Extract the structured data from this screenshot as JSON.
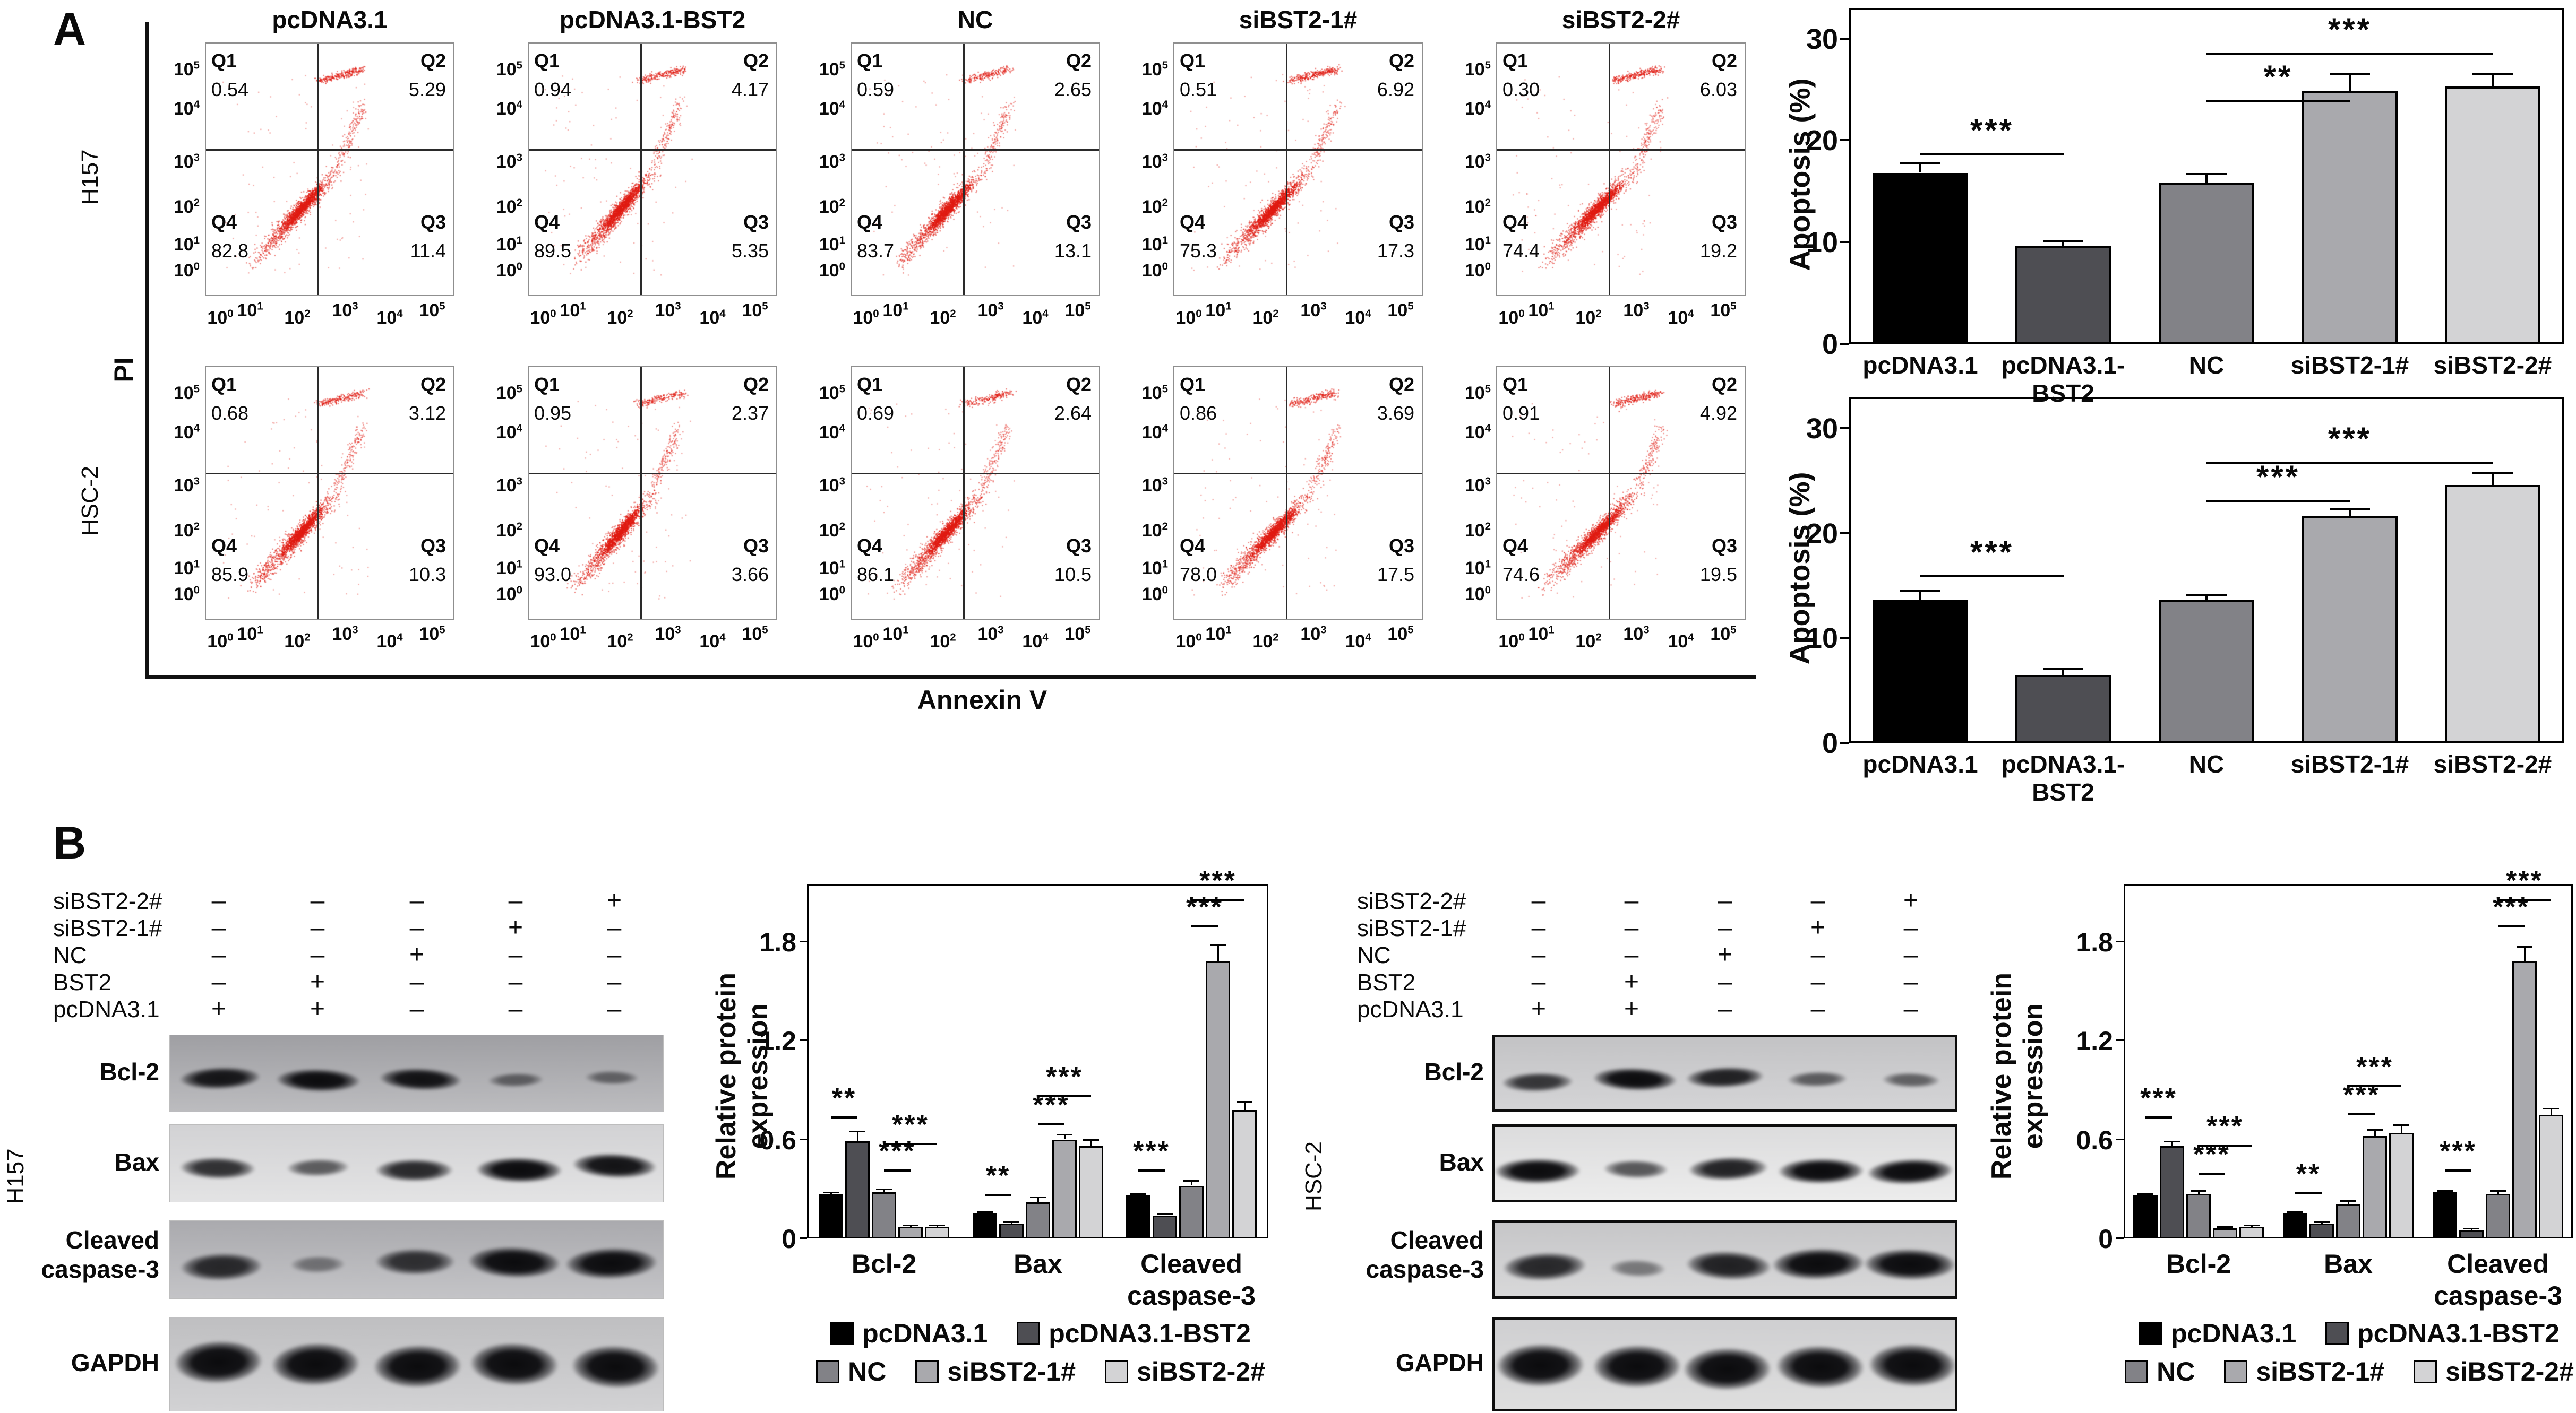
{
  "colors": {
    "scatter": "#e01b12",
    "bar_series": [
      "#000000",
      "#4e4e53",
      "#828287",
      "#a9a9ad",
      "#d3d3d5"
    ],
    "axis": "#000000"
  },
  "panel_a": {
    "label": "A",
    "col_headers": [
      "pcDNA3.1",
      "pcDNA3.1-BST2",
      "NC",
      "siBST2-1#",
      "siBST2-2#"
    ],
    "row_labels": [
      "H157",
      "HSC-2"
    ],
    "y_axis_label": "PI",
    "x_axis_label": "Annexin V",
    "log_base": "10",
    "y_exponents": [
      "5",
      "4",
      "3",
      "2",
      "1",
      "0"
    ],
    "x_exponents": [
      "0",
      "1",
      "2",
      "3",
      "4",
      "5"
    ],
    "quadrant_names": {
      "q1": "Q1",
      "q2": "Q2",
      "q3": "Q3",
      "q4": "Q4"
    },
    "plots": [
      {
        "cell_line": "H157",
        "condition": "pcDNA3.1",
        "q1": "0.54",
        "q2": "5.29",
        "q3": "11.4",
        "q4": "82.8"
      },
      {
        "cell_line": "H157",
        "condition": "pcDNA3.1-BST2",
        "q1": "0.94",
        "q2": "4.17",
        "q3": "5.35",
        "q4": "89.5"
      },
      {
        "cell_line": "H157",
        "condition": "NC",
        "q1": "0.59",
        "q2": "2.65",
        "q3": "13.1",
        "q4": "83.7"
      },
      {
        "cell_line": "H157",
        "condition": "siBST2-1#",
        "q1": "0.51",
        "q2": "6.92",
        "q3": "17.3",
        "q4": "75.3"
      },
      {
        "cell_line": "H157",
        "condition": "siBST2-2#",
        "q1": "0.30",
        "q2": "6.03",
        "q3": "19.2",
        "q4": "74.4"
      },
      {
        "cell_line": "HSC-2",
        "condition": "pcDNA3.1",
        "q1": "0.68",
        "q2": "3.12",
        "q3": "10.3",
        "q4": "85.9"
      },
      {
        "cell_line": "HSC-2",
        "condition": "pcDNA3.1-BST2",
        "q1": "0.95",
        "q2": "2.37",
        "q3": "3.66",
        "q4": "93.0"
      },
      {
        "cell_line": "HSC-2",
        "condition": "NC",
        "q1": "0.69",
        "q2": "2.64",
        "q3": "10.5",
        "q4": "86.1"
      },
      {
        "cell_line": "HSC-2",
        "condition": "siBST2-1#",
        "q1": "0.86",
        "q2": "3.69",
        "q3": "17.5",
        "q4": "78.0"
      },
      {
        "cell_line": "HSC-2",
        "condition": "siBST2-2#",
        "q1": "0.91",
        "q2": "4.92",
        "q3": "19.5",
        "q4": "74.6"
      }
    ]
  },
  "chart_data": [
    {
      "id": "apoptosis-h157",
      "type": "bar",
      "ylabel": "Apoptosis (%)",
      "categories": [
        "pcDNA3.1",
        "pcDNA3.1-\nBST2",
        "NC",
        "siBST2-1#",
        "siBST2-2#"
      ],
      "values": [
        16.8,
        9.6,
        15.8,
        24.8,
        25.3
      ],
      "errors": [
        0.9,
        0.5,
        0.9,
        1.7,
        1.2
      ],
      "ylim": [
        0,
        33
      ],
      "yticks": [
        0,
        10,
        20,
        30
      ],
      "significance": [
        {
          "from": 0,
          "to": 1,
          "label": "***",
          "y": 18.7
        },
        {
          "from": 2,
          "to": 3,
          "label": "**",
          "y": 24.0
        },
        {
          "from": 2,
          "to": 4,
          "label": "***",
          "y": 28.6
        }
      ]
    },
    {
      "id": "apoptosis-hsc2",
      "type": "bar",
      "ylabel": "Apoptosis (%)",
      "categories": [
        "pcDNA3.1",
        "pcDNA3.1-\nBST2",
        "NC",
        "siBST2-1#",
        "siBST2-2#"
      ],
      "values": [
        13.6,
        6.5,
        13.6,
        21.6,
        24.6
      ],
      "errors": [
        0.9,
        0.6,
        0.5,
        0.7,
        1.1
      ],
      "ylim": [
        0,
        33
      ],
      "yticks": [
        0,
        10,
        20,
        30
      ],
      "significance": [
        {
          "from": 0,
          "to": 1,
          "label": "***",
          "y": 16.0
        },
        {
          "from": 2,
          "to": 3,
          "label": "***",
          "y": 23.2
        },
        {
          "from": 2,
          "to": 4,
          "label": "***",
          "y": 26.8
        }
      ]
    },
    {
      "id": "protein-h157",
      "type": "grouped-bar",
      "ylabel": "Relative protein expression",
      "groups": [
        "Bcl-2",
        "Bax",
        "Cleaved\ncaspase-3"
      ],
      "series": [
        "pcDNA3.1",
        "pcDNA3.1-BST2",
        "NC",
        "siBST2-1#",
        "siBST2-2#"
      ],
      "values": [
        [
          0.27,
          0.59,
          0.28,
          0.07,
          0.07
        ],
        [
          0.15,
          0.09,
          0.22,
          0.6,
          0.56
        ],
        [
          0.26,
          0.14,
          0.32,
          1.68,
          0.78
        ]
      ],
      "errors": [
        [
          0.01,
          0.06,
          0.02,
          0.01,
          0.01
        ],
        [
          0.01,
          0.01,
          0.03,
          0.03,
          0.04
        ],
        [
          0.01,
          0.01,
          0.03,
          0.1,
          0.05
        ]
      ],
      "ylim": [
        0,
        2.15
      ],
      "yticks": [
        0,
        0.6,
        1.2,
        1.8
      ],
      "legend_rows": [
        [
          "pcDNA3.1",
          "pcDNA3.1-BST2"
        ],
        [
          "NC",
          "siBST2-1#",
          "siBST2-2#"
        ]
      ],
      "significance": [
        {
          "group": 0,
          "from": 0,
          "to": 1,
          "label": "**",
          "y": 0.74
        },
        {
          "group": 0,
          "from": 2,
          "to": 3,
          "label": "***",
          "y": 0.42
        },
        {
          "group": 0,
          "from": 2,
          "to": 4,
          "label": "***",
          "y": 0.58
        },
        {
          "group": 1,
          "from": 0,
          "to": 1,
          "label": "**",
          "y": 0.27
        },
        {
          "group": 1,
          "from": 2,
          "to": 3,
          "label": "***",
          "y": 0.7
        },
        {
          "group": 1,
          "from": 2,
          "to": 4,
          "label": "***",
          "y": 0.87
        },
        {
          "group": 2,
          "from": 0,
          "to": 1,
          "label": "***",
          "y": 0.42
        },
        {
          "group": 2,
          "from": 2,
          "to": 3,
          "label": "***",
          "y": 1.9
        },
        {
          "group": 2,
          "from": 2,
          "to": 4,
          "label": "***",
          "y": 2.06
        }
      ]
    },
    {
      "id": "protein-hsc2",
      "type": "grouped-bar",
      "ylabel": "Relative protein expression",
      "groups": [
        "Bcl-2",
        "Bax",
        "Cleaved\ncaspase-3"
      ],
      "series": [
        "pcDNA3.1",
        "pcDNA3.1-BST2",
        "NC",
        "siBST2-1#",
        "siBST2-2#"
      ],
      "values": [
        [
          0.26,
          0.56,
          0.27,
          0.06,
          0.07
        ],
        [
          0.15,
          0.09,
          0.21,
          0.62,
          0.64
        ],
        [
          0.28,
          0.05,
          0.27,
          1.68,
          0.75
        ]
      ],
      "errors": [
        [
          0.01,
          0.03,
          0.02,
          0.01,
          0.01
        ],
        [
          0.01,
          0.01,
          0.02,
          0.04,
          0.05
        ],
        [
          0.01,
          0.01,
          0.02,
          0.09,
          0.04
        ]
      ],
      "ylim": [
        0,
        2.15
      ],
      "yticks": [
        0,
        0.6,
        1.2,
        1.8
      ],
      "legend_rows": [
        [
          "pcDNA3.1",
          "pcDNA3.1-BST2"
        ],
        [
          "NC",
          "siBST2-1#",
          "siBST2-2#"
        ]
      ],
      "significance": [
        {
          "group": 0,
          "from": 0,
          "to": 1,
          "label": "***",
          "y": 0.74
        },
        {
          "group": 0,
          "from": 2,
          "to": 3,
          "label": "***",
          "y": 0.4
        },
        {
          "group": 0,
          "from": 2,
          "to": 4,
          "label": "***",
          "y": 0.57
        },
        {
          "group": 1,
          "from": 0,
          "to": 1,
          "label": "**",
          "y": 0.28
        },
        {
          "group": 1,
          "from": 2,
          "to": 3,
          "label": "***",
          "y": 0.76
        },
        {
          "group": 1,
          "from": 2,
          "to": 4,
          "label": "***",
          "y": 0.93
        },
        {
          "group": 2,
          "from": 0,
          "to": 1,
          "label": "***",
          "y": 0.42
        },
        {
          "group": 2,
          "from": 2,
          "to": 3,
          "label": "***",
          "y": 1.9
        },
        {
          "group": 2,
          "from": 2,
          "to": 4,
          "label": "***",
          "y": 2.06
        }
      ]
    }
  ],
  "panel_b": {
    "label": "B",
    "conditions": [
      {
        "name": "siBST2-2#",
        "signs": [
          "–",
          "–",
          "–",
          "–",
          "+"
        ]
      },
      {
        "name": "siBST2-1#",
        "signs": [
          "–",
          "–",
          "–",
          "+",
          "–"
        ]
      },
      {
        "name": "NC",
        "signs": [
          "–",
          "–",
          "+",
          "–",
          "–"
        ]
      },
      {
        "name": "BST2",
        "signs": [
          "–",
          "+",
          "–",
          "–",
          "–"
        ]
      },
      {
        "name": "pcDNA3.1",
        "signs": [
          "+",
          "+",
          "–",
          "–",
          "–"
        ]
      }
    ],
    "proteins": [
      "Bcl-2",
      "Bax",
      "Cleaved\ncaspase-3",
      "GAPDH"
    ],
    "blots": [
      {
        "cell_line": "H157",
        "band_intensity": [
          [
            0.92,
            1,
            0.95,
            0.32,
            0.28
          ],
          [
            0.75,
            0.45,
            0.8,
            1,
            0.95
          ],
          [
            0.78,
            0.18,
            0.72,
            1,
            1
          ],
          [
            1,
            1,
            1,
            1,
            1
          ]
        ]
      },
      {
        "cell_line": "HSC-2",
        "band_intensity": [
          [
            0.7,
            1,
            0.85,
            0.42,
            0.38
          ],
          [
            1,
            0.5,
            0.85,
            1,
            1
          ],
          [
            0.8,
            0.22,
            0.85,
            1,
            1
          ],
          [
            1,
            1,
            1,
            1,
            1
          ]
        ]
      }
    ]
  }
}
